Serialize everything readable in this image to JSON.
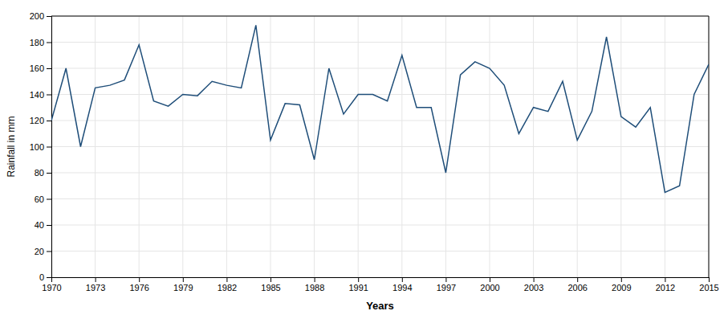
{
  "chart_data": {
    "type": "line",
    "x": [
      1970,
      1971,
      1972,
      1973,
      1974,
      1975,
      1976,
      1977,
      1978,
      1979,
      1980,
      1981,
      1982,
      1983,
      1984,
      1985,
      1986,
      1987,
      1988,
      1989,
      1990,
      1991,
      1992,
      1993,
      1994,
      1995,
      1996,
      1997,
      1998,
      1999,
      2000,
      2001,
      2002,
      2003,
      2004,
      2005,
      2006,
      2007,
      2008,
      2009,
      2010,
      2011,
      2012,
      2013,
      2014,
      2015
    ],
    "values": [
      120,
      160,
      100,
      145,
      147,
      151,
      178,
      135,
      131,
      140,
      139,
      150,
      147,
      145,
      193,
      105,
      133,
      132,
      90,
      160,
      125,
      140,
      140,
      135,
      170,
      130,
      130,
      80,
      155,
      165,
      160,
      147,
      110,
      130,
      127,
      150,
      105,
      127,
      184,
      123,
      115,
      130,
      65,
      70,
      140,
      163
    ],
    "color": "#1f4e79",
    "xlabel": "Years",
    "ylabel": "Rainfall in mm",
    "xlim": [
      1970,
      2015
    ],
    "ylim": [
      0,
      200
    ],
    "xticks": [
      1970,
      1973,
      1976,
      1979,
      1982,
      1985,
      1988,
      1991,
      1994,
      1997,
      2000,
      2003,
      2006,
      2009,
      2012,
      2015
    ],
    "yticks": [
      0,
      20,
      40,
      60,
      80,
      100,
      120,
      140,
      160,
      180,
      200
    ],
    "grid": true
  }
}
